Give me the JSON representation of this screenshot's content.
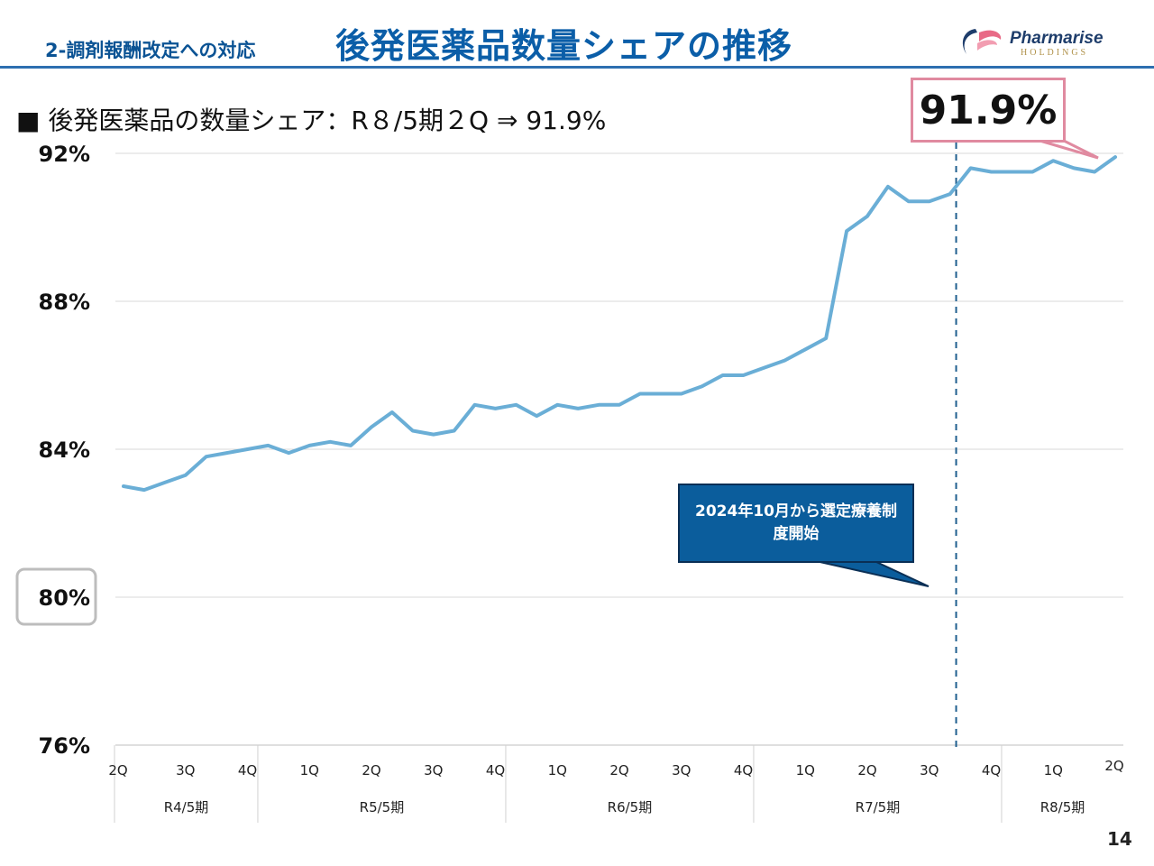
{
  "header": {
    "section_label": "2-調剤報酬改定への対応",
    "title": "後発医薬品数量シェアの推移",
    "logo_name": "Pharmarise",
    "logo_sub": "HOLDINGS"
  },
  "subtitle": "■ 後発医薬品の数量シェア：R８/5期２Q ⇒ 91.9%",
  "page_number": "14",
  "colors": {
    "line": "#6aaed6",
    "accent_blue": "#0b5ea8",
    "callout_border": "#e08aa0",
    "annotation_bg": "#0b5d9c"
  },
  "chart_data": {
    "type": "line",
    "title": "後発医薬品数量シェアの推移",
    "ylabel": "",
    "xlabel": "",
    "ylim": [
      76,
      92
    ],
    "y_ticks": [
      76,
      80,
      84,
      88,
      92
    ],
    "y_tick_labels": [
      "76%",
      "80%",
      "84%",
      "88%",
      "92%"
    ],
    "highlighted_tick": "80%",
    "grid": true,
    "series": [
      {
        "name": "後発医薬品数量シェア",
        "values": [
          83.0,
          82.9,
          83.1,
          83.3,
          83.8,
          83.9,
          84.0,
          84.1,
          83.9,
          84.1,
          84.2,
          84.1,
          84.6,
          85.0,
          84.5,
          84.4,
          84.5,
          85.2,
          85.1,
          85.2,
          84.9,
          85.2,
          85.1,
          85.2,
          85.2,
          85.5,
          85.5,
          85.5,
          85.7,
          86.0,
          86.0,
          86.2,
          86.4,
          86.7,
          87.0,
          89.9,
          90.3,
          91.1,
          90.7,
          90.7,
          90.9,
          91.6,
          91.5,
          91.5,
          91.5,
          91.8,
          91.6,
          91.5,
          91.9
        ]
      }
    ],
    "x_quarter_labels": [
      {
        "label": "2Q",
        "index": 0
      },
      {
        "label": "3Q",
        "index": 3
      },
      {
        "label": "4Q",
        "index": 6
      },
      {
        "label": "1Q",
        "index": 9
      },
      {
        "label": "2Q",
        "index": 12
      },
      {
        "label": "3Q",
        "index": 15
      },
      {
        "label": "4Q",
        "index": 18
      },
      {
        "label": "1Q",
        "index": 21
      },
      {
        "label": "2Q",
        "index": 24
      },
      {
        "label": "3Q",
        "index": 27
      },
      {
        "label": "4Q",
        "index": 30
      },
      {
        "label": "1Q",
        "index": 33
      },
      {
        "label": "2Q",
        "index": 36
      },
      {
        "label": "3Q",
        "index": 39
      },
      {
        "label": "4Q",
        "index": 42
      },
      {
        "label": "1Q",
        "index": 45
      },
      {
        "label": "2Q",
        "index": 48
      }
    ],
    "x_period_groups": [
      {
        "label": "R4/5期",
        "start": 0,
        "end": 6.5
      },
      {
        "label": "R5/5期",
        "start": 6.5,
        "end": 18.5
      },
      {
        "label": "R6/5期",
        "start": 18.5,
        "end": 30.5
      },
      {
        "label": "R7/5期",
        "start": 30.5,
        "end": 42.5
      },
      {
        "label": "R8/5期",
        "start": 42.5,
        "end": 48.5
      }
    ],
    "event_marker": {
      "index": 40.3,
      "label": "2024年10月から選定療養制度開始"
    },
    "callout_value": "91.9%"
  }
}
